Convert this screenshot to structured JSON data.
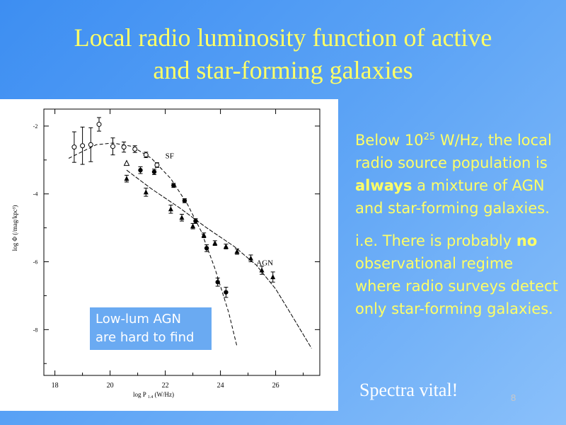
{
  "slide": {
    "title_line1": "Local radio luminosity function of active",
    "title_line2": "and star-forming galaxies",
    "callout_line1": "Low-lum AGN",
    "callout_line2": "are hard to find",
    "para1": {
      "a": "Below 10",
      "sup": "25",
      "b": " W/Hz, the local radio source population is ",
      "emph": "always",
      "c": " a  mixture of AGN and star-forming  galaxies."
    },
    "para2": {
      "a": "i.e. There is probably ",
      "emph": "no",
      "b": " observational regime where radio surveys detect only star-forming galaxies."
    },
    "footer": "Spectra vital!",
    "slide_number": "8",
    "colors": {
      "accent_text": "#ffff66",
      "callout_bg": "#6aaaf2"
    }
  },
  "chart_data": {
    "type": "scatter",
    "xlabel": "log P",
    "xlabel_sub": "1.4",
    "xlabel_unit": "(W/Hz)",
    "ylabel": "log Φ (/mag/kpc³)",
    "xlim": [
      17.6,
      27.6
    ],
    "ylim": [
      -9.35,
      -1.5
    ],
    "xticks": [
      18,
      20,
      22,
      24,
      26
    ],
    "yticks": [
      -2,
      -4,
      -6,
      -8
    ],
    "series": [
      {
        "name": "SF",
        "marker": "open-circle",
        "points": [
          {
            "x": 18.7,
            "y": -2.62,
            "err": 0.45
          },
          {
            "x": 19.0,
            "y": -2.58,
            "err": 0.55
          },
          {
            "x": 19.3,
            "y": -2.55,
            "err": 0.5
          },
          {
            "x": 19.6,
            "y": -1.95,
            "err": 0.2
          },
          {
            "x": 20.1,
            "y": -2.6,
            "err": 0.25
          },
          {
            "x": 20.5,
            "y": -2.62,
            "err": 0.15
          },
          {
            "x": 20.9,
            "y": -2.68,
            "err": 0.1
          },
          {
            "x": 21.3,
            "y": -2.85,
            "err": 0.08
          },
          {
            "x": 21.7,
            "y": -3.15,
            "err": 0.07
          }
        ]
      },
      {
        "name": "",
        "marker": "filled-circle",
        "points": [
          {
            "x": 21.1,
            "y": -3.3,
            "err": 0.1
          },
          {
            "x": 21.6,
            "y": -3.35,
            "err": 0.08
          },
          {
            "x": 22.3,
            "y": -3.75,
            "err": 0.06
          },
          {
            "x": 22.7,
            "y": -4.2,
            "err": 0.06
          },
          {
            "x": 23.1,
            "y": -4.8,
            "err": 0.07
          },
          {
            "x": 23.5,
            "y": -5.6,
            "err": 0.1
          },
          {
            "x": 23.9,
            "y": -6.6,
            "err": 0.12
          },
          {
            "x": 24.2,
            "y": -6.9,
            "err": 0.15
          }
        ]
      },
      {
        "name": "AGN",
        "marker": "filled-triangle",
        "points": [
          {
            "x": 20.6,
            "y": -3.55,
            "err": 0.1
          },
          {
            "x": 21.3,
            "y": -3.95,
            "err": 0.12
          },
          {
            "x": 22.2,
            "y": -4.45,
            "err": 0.12
          },
          {
            "x": 22.6,
            "y": -4.7,
            "err": 0.1
          },
          {
            "x": 23.0,
            "y": -4.95,
            "err": 0.08
          },
          {
            "x": 23.4,
            "y": -5.22,
            "err": 0.07
          },
          {
            "x": 23.8,
            "y": -5.45,
            "err": 0.07
          },
          {
            "x": 24.2,
            "y": -5.55,
            "err": 0.07
          },
          {
            "x": 24.6,
            "y": -5.7,
            "err": 0.08
          },
          {
            "x": 25.1,
            "y": -5.9,
            "err": 0.1
          },
          {
            "x": 25.5,
            "y": -6.25,
            "err": 0.12
          },
          {
            "x": 25.9,
            "y": -6.45,
            "err": 0.15
          }
        ]
      }
    ],
    "curves": [
      {
        "name": "SF",
        "points": [
          [
            18.5,
            -2.95
          ],
          [
            19.5,
            -2.55
          ],
          [
            20.1,
            -2.5
          ],
          [
            20.8,
            -2.6
          ],
          [
            21.5,
            -2.95
          ],
          [
            22.2,
            -3.55
          ],
          [
            22.8,
            -4.3
          ],
          [
            23.3,
            -5.1
          ],
          [
            23.8,
            -6.2
          ],
          [
            24.3,
            -7.5
          ],
          [
            24.6,
            -8.5
          ]
        ]
      },
      {
        "name": "AGN",
        "points": [
          [
            20.6,
            -3.3
          ],
          [
            21.5,
            -3.85
          ],
          [
            22.5,
            -4.4
          ],
          [
            23.5,
            -5.0
          ],
          [
            24.5,
            -5.55
          ],
          [
            25.3,
            -6.1
          ],
          [
            26.0,
            -6.8
          ],
          [
            26.6,
            -7.6
          ],
          [
            27.3,
            -8.55
          ]
        ]
      }
    ],
    "open_triangle": {
      "x": 20.6,
      "y": -3.1
    },
    "annotations": [
      {
        "text": "SF",
        "x": 22.0,
        "y": -2.95
      },
      {
        "text": "AGN",
        "x": 25.3,
        "y": -6.1
      }
    ]
  }
}
